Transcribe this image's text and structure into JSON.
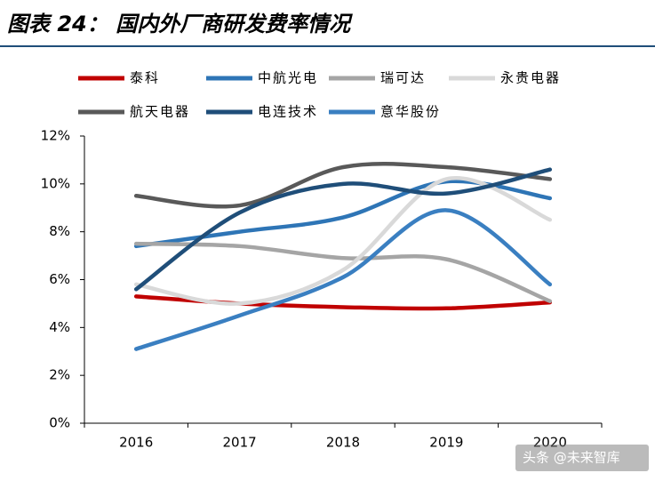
{
  "chart_data": {
    "type": "line",
    "title": "图表 24： 国内外厂商研发费率情况",
    "watermark": "头条 @未来智库",
    "categories": [
      "2016",
      "2017",
      "2018",
      "2019",
      "2020"
    ],
    "series": [
      {
        "name": "泰科",
        "color": "#c00000",
        "values": [
          5.3,
          5.0,
          4.85,
          4.8,
          5.05
        ]
      },
      {
        "name": "中航光电",
        "color": "#2e75b6",
        "values": [
          7.4,
          8.0,
          8.6,
          10.1,
          9.4
        ]
      },
      {
        "name": "瑞可达",
        "color": "#a5a5a5",
        "values": [
          7.5,
          7.4,
          6.9,
          6.85,
          5.1
        ]
      },
      {
        "name": "永贵电器",
        "color": "#d9d9d9",
        "values": [
          5.8,
          5.0,
          6.4,
          10.2,
          8.5
        ]
      },
      {
        "name": "航天电器",
        "color": "#595959",
        "values": [
          9.5,
          9.1,
          10.7,
          10.7,
          10.2
        ]
      },
      {
        "name": "电连技术",
        "color": "#1f4e79",
        "values": [
          5.6,
          8.8,
          10.0,
          9.6,
          10.6
        ]
      },
      {
        "name": "意华股份",
        "color": "#3a7fc1",
        "values": [
          3.1,
          4.5,
          6.1,
          8.9,
          5.8
        ]
      }
    ],
    "ylim": [
      0,
      12
    ],
    "yticks": [
      {
        "value": 0,
        "label": "0%"
      },
      {
        "value": 2,
        "label": "2%"
      },
      {
        "value": 4,
        "label": "4%"
      },
      {
        "value": 6,
        "label": "6%"
      },
      {
        "value": 8,
        "label": "8%"
      },
      {
        "value": 10,
        "label": "10%"
      },
      {
        "value": 12,
        "label": "12%"
      }
    ]
  }
}
